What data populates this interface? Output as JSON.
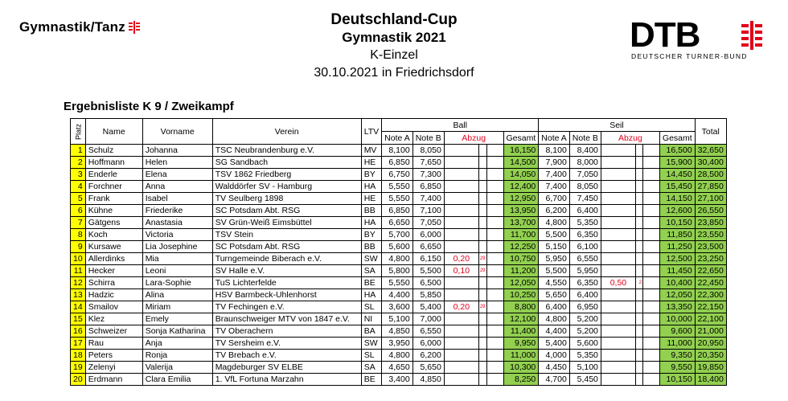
{
  "logo_left": {
    "text": "Gymnastik/Tanz"
  },
  "header": {
    "title": "Deutschland-Cup",
    "subtitle": "Gymnastik 2021",
    "category": "K-Einzel",
    "date_place": "30.10.2021 in Friedrichsdorf"
  },
  "logo_right": {
    "letters": "DTB",
    "sub": "DEUTSCHER TURNER-BUND"
  },
  "list_title": "Ergebnisliste K 9 / Zweikampf",
  "columns": {
    "platz": "Platz",
    "name": "Name",
    "vorname": "Vorname",
    "verein": "Verein",
    "ltv": "LTV",
    "ball": "Ball",
    "seil": "Seil",
    "note_a": "Note A",
    "note_b": "Note B",
    "abzug": "Abzug",
    "gesamt": "Gesamt",
    "total": "Total"
  },
  "colors": {
    "green": "#92d050",
    "yellow": "#ffff00",
    "red": "#e1001a"
  },
  "rows": [
    {
      "platz": "1",
      "name": "Schulz",
      "vorname": "Johanna",
      "verein": "TSC Neubrandenburg e.V.",
      "ltv": "MV",
      "ball_a": "8,100",
      "ball_b": "8,050",
      "ball_abzug": "",
      "ball_ex": "",
      "ball_gesamt": "16,150",
      "seil_a": "8,100",
      "seil_b": "8,400",
      "seil_abzug": "",
      "seil_ex": "",
      "seil_gesamt": "16,500",
      "total": "32,650"
    },
    {
      "platz": "2",
      "name": "Hoffmann",
      "vorname": "Helen",
      "verein": "SG Sandbach",
      "ltv": "HE",
      "ball_a": "6,850",
      "ball_b": "7,650",
      "ball_abzug": "",
      "ball_ex": "",
      "ball_gesamt": "14,500",
      "seil_a": "7,900",
      "seil_b": "8,000",
      "seil_abzug": "",
      "seil_ex": "",
      "seil_gesamt": "15,900",
      "total": "30,400"
    },
    {
      "platz": "3",
      "name": "Enderle",
      "vorname": "Elena",
      "verein": "TSV 1862 Friedberg",
      "ltv": "BY",
      "ball_a": "6,750",
      "ball_b": "7,300",
      "ball_abzug": "",
      "ball_ex": "",
      "ball_gesamt": "14,050",
      "seil_a": "7,400",
      "seil_b": "7,050",
      "seil_abzug": "",
      "seil_ex": "",
      "seil_gesamt": "14,450",
      "total": "28,500"
    },
    {
      "platz": "4",
      "name": "Forchner",
      "vorname": "Anna",
      "verein": "Walddörfer SV - Hamburg",
      "ltv": "HA",
      "ball_a": "5,550",
      "ball_b": "6,850",
      "ball_abzug": "",
      "ball_ex": "",
      "ball_gesamt": "12,400",
      "seil_a": "7,400",
      "seil_b": "8,050",
      "seil_abzug": "",
      "seil_ex": "",
      "seil_gesamt": "15,450",
      "total": "27,850"
    },
    {
      "platz": "5",
      "name": "Frank",
      "vorname": "Isabel",
      "verein": "TV Seulberg 1898",
      "ltv": "HE",
      "ball_a": "5,550",
      "ball_b": "7,400",
      "ball_abzug": "",
      "ball_ex": "",
      "ball_gesamt": "12,950",
      "seil_a": "6,700",
      "seil_b": "7,450",
      "seil_abzug": "",
      "seil_ex": "",
      "seil_gesamt": "14,150",
      "total": "27,100"
    },
    {
      "platz": "6",
      "name": "Kühne",
      "vorname": "Friederike",
      "verein": "SC Potsdam Abt. RSG",
      "ltv": "BB",
      "ball_a": "6,850",
      "ball_b": "7,100",
      "ball_abzug": "",
      "ball_ex": "",
      "ball_gesamt": "13,950",
      "seil_a": "6,200",
      "seil_b": "6,400",
      "seil_abzug": "",
      "seil_ex": "",
      "seil_gesamt": "12,600",
      "total": "26,550"
    },
    {
      "platz": "7",
      "name": "Gätgens",
      "vorname": "Anastasia",
      "verein": "SV Grün-Weiß Eimsbüttel",
      "ltv": "HA",
      "ball_a": "6,650",
      "ball_b": "7,050",
      "ball_abzug": "",
      "ball_ex": "",
      "ball_gesamt": "13,700",
      "seil_a": "4,800",
      "seil_b": "5,350",
      "seil_abzug": "",
      "seil_ex": "",
      "seil_gesamt": "10,150",
      "total": "23,850"
    },
    {
      "platz": "8",
      "name": "Koch",
      "vorname": "Victoria",
      "verein": "TSV Stein",
      "ltv": "BY",
      "ball_a": "5,700",
      "ball_b": "6,000",
      "ball_abzug": "",
      "ball_ex": "",
      "ball_gesamt": "11,700",
      "seil_a": "5,500",
      "seil_b": "6,350",
      "seil_abzug": "",
      "seil_ex": "",
      "seil_gesamt": "11,850",
      "total": "23,550"
    },
    {
      "platz": "9",
      "name": "Kursawe",
      "vorname": "Lia Josephine",
      "verein": "SC Potsdam Abt. RSG",
      "ltv": "BB",
      "ball_a": "5,600",
      "ball_b": "6,650",
      "ball_abzug": "",
      "ball_ex": "",
      "ball_gesamt": "12,250",
      "seil_a": "5,150",
      "seil_b": "6,100",
      "seil_abzug": "",
      "seil_ex": "",
      "seil_gesamt": "11,250",
      "total": "23,500"
    },
    {
      "platz": "10",
      "name": "Allerdinks",
      "vorname": "Mia",
      "verein": "Turngemeinde Biberach e.V.",
      "ltv": "SW",
      "ball_a": "4,800",
      "ball_b": "6,150",
      "ball_abzug": "0,20",
      "ball_ex": "29",
      "ball_gesamt": "10,750",
      "seil_a": "5,950",
      "seil_b": "6,550",
      "seil_abzug": "",
      "seil_ex": "",
      "seil_gesamt": "12,500",
      "total": "23,250"
    },
    {
      "platz": "11",
      "name": "Hecker",
      "vorname": "Leoni",
      "verein": "SV Halle e.V.",
      "ltv": "SA",
      "ball_a": "5,800",
      "ball_b": "5,500",
      "ball_abzug": "0,10",
      "ball_ex": "29",
      "ball_gesamt": "11,200",
      "seil_a": "5,500",
      "seil_b": "5,950",
      "seil_abzug": "",
      "seil_ex": "",
      "seil_gesamt": "11,450",
      "total": "22,650"
    },
    {
      "platz": "12",
      "name": "Schirra",
      "vorname": "Lara-Sophie",
      "verein": "TuS Lichterfelde",
      "ltv": "BE",
      "ball_a": "5,550",
      "ball_b": "6,500",
      "ball_abzug": "",
      "ball_ex": "",
      "ball_gesamt": "12,050",
      "seil_a": "4,550",
      "seil_b": "6,350",
      "seil_abzug": "0,50",
      "seil_ex": "2",
      "seil_gesamt": "10,400",
      "total": "22,450"
    },
    {
      "platz": "13",
      "name": "Hadzic",
      "vorname": "Alina",
      "verein": "HSV Barmbeck-Uhlenhorst",
      "ltv": "HA",
      "ball_a": "4,400",
      "ball_b": "5,850",
      "ball_abzug": "",
      "ball_ex": "",
      "ball_gesamt": "10,250",
      "seil_a": "5,650",
      "seil_b": "6,400",
      "seil_abzug": "",
      "seil_ex": "",
      "seil_gesamt": "12,050",
      "total": "22,300"
    },
    {
      "platz": "14",
      "name": "Smailov",
      "vorname": "Miriam",
      "verein": "TV Fechingen e.V.",
      "ltv": "SL",
      "ball_a": "3,600",
      "ball_b": "5,400",
      "ball_abzug": "0,20",
      "ball_ex": "29",
      "ball_gesamt": "8,800",
      "seil_a": "6,400",
      "seil_b": "6,950",
      "seil_abzug": "",
      "seil_ex": "",
      "seil_gesamt": "13,350",
      "total": "22,150"
    },
    {
      "platz": "15",
      "name": "Klez",
      "vorname": "Emely",
      "verein": "Braunschweiger MTV von 1847 e.V.",
      "ltv": "NI",
      "ball_a": "5,100",
      "ball_b": "7,000",
      "ball_abzug": "",
      "ball_ex": "",
      "ball_gesamt": "12,100",
      "seil_a": "4,800",
      "seil_b": "5,200",
      "seil_abzug": "",
      "seil_ex": "",
      "seil_gesamt": "10,000",
      "total": "22,100"
    },
    {
      "platz": "16",
      "name": "Schweizer",
      "vorname": "Sonja Katharina",
      "verein": "TV Oberachern",
      "ltv": "BA",
      "ball_a": "4,850",
      "ball_b": "6,550",
      "ball_abzug": "",
      "ball_ex": "",
      "ball_gesamt": "11,400",
      "seil_a": "4,400",
      "seil_b": "5,200",
      "seil_abzug": "",
      "seil_ex": "",
      "seil_gesamt": "9,600",
      "total": "21,000"
    },
    {
      "platz": "17",
      "name": "Rau",
      "vorname": "Anja",
      "verein": "TV Sersheim e.V.",
      "ltv": "SW",
      "ball_a": "3,950",
      "ball_b": "6,000",
      "ball_abzug": "",
      "ball_ex": "",
      "ball_gesamt": "9,950",
      "seil_a": "5,400",
      "seil_b": "5,600",
      "seil_abzug": "",
      "seil_ex": "",
      "seil_gesamt": "11,000",
      "total": "20,950"
    },
    {
      "platz": "18",
      "name": "Peters",
      "vorname": "Ronja",
      "verein": "TV Brebach e.V.",
      "ltv": "SL",
      "ball_a": "4,800",
      "ball_b": "6,200",
      "ball_abzug": "",
      "ball_ex": "",
      "ball_gesamt": "11,000",
      "seil_a": "4,000",
      "seil_b": "5,350",
      "seil_abzug": "",
      "seil_ex": "",
      "seil_gesamt": "9,350",
      "total": "20,350"
    },
    {
      "platz": "19",
      "name": "Zelenyi",
      "vorname": "Valerija",
      "verein": "Magdeburger SV ELBE",
      "ltv": "SA",
      "ball_a": "4,650",
      "ball_b": "5,650",
      "ball_abzug": "",
      "ball_ex": "",
      "ball_gesamt": "10,300",
      "seil_a": "4,450",
      "seil_b": "5,100",
      "seil_abzug": "",
      "seil_ex": "",
      "seil_gesamt": "9,550",
      "total": "19,850"
    },
    {
      "platz": "20",
      "name": "Erdmann",
      "vorname": "Clara Emilia",
      "verein": "1. VfL Fortuna Marzahn",
      "ltv": "BE",
      "ball_a": "3,400",
      "ball_b": "4,850",
      "ball_abzug": "",
      "ball_ex": "",
      "ball_gesamt": "8,250",
      "seil_a": "4,700",
      "seil_b": "5,450",
      "seil_abzug": "",
      "seil_ex": "",
      "seil_gesamt": "10,150",
      "total": "18,400"
    }
  ]
}
